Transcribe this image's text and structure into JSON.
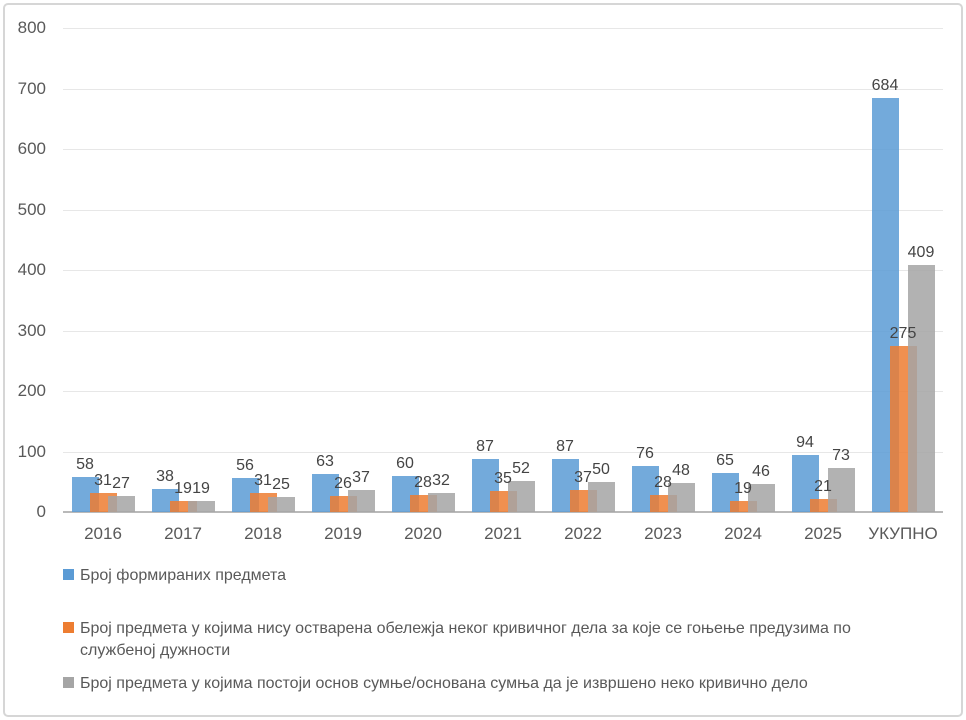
{
  "chart_data": {
    "type": "bar",
    "title": "",
    "xlabel": "",
    "ylabel": "",
    "categories": [
      "2016",
      "2017",
      "2018",
      "2019",
      "2020",
      "2021",
      "2022",
      "2023",
      "2024",
      "2025",
      "УКУПНО"
    ],
    "series": [
      {
        "name": "Број формираних предмета",
        "color": "#5B9BD5",
        "values": [
          58,
          38,
          56,
          63,
          60,
          87,
          87,
          76,
          65,
          94,
          684
        ]
      },
      {
        "name": "Број предмета у којима нису остварена обележја неког кривичног дела за које се гоњење предузима по службеној дужности",
        "color": "#ED7D31",
        "values": [
          31,
          19,
          31,
          26,
          28,
          35,
          37,
          28,
          19,
          21,
          275
        ]
      },
      {
        "name": "Број предмета у којима постоји основ сумње/основана сумња да је извршено неко кривично дело",
        "color": "#A5A5A5",
        "values": [
          27,
          19,
          25,
          37,
          32,
          52,
          50,
          48,
          46,
          73,
          409
        ]
      }
    ],
    "ylim": [
      0,
      800
    ],
    "ytick_step": 100,
    "yticks": [
      0,
      100,
      200,
      300,
      400,
      500,
      600,
      700,
      800
    ],
    "grid": true,
    "data_labels": true,
    "legend_position": "bottom"
  }
}
